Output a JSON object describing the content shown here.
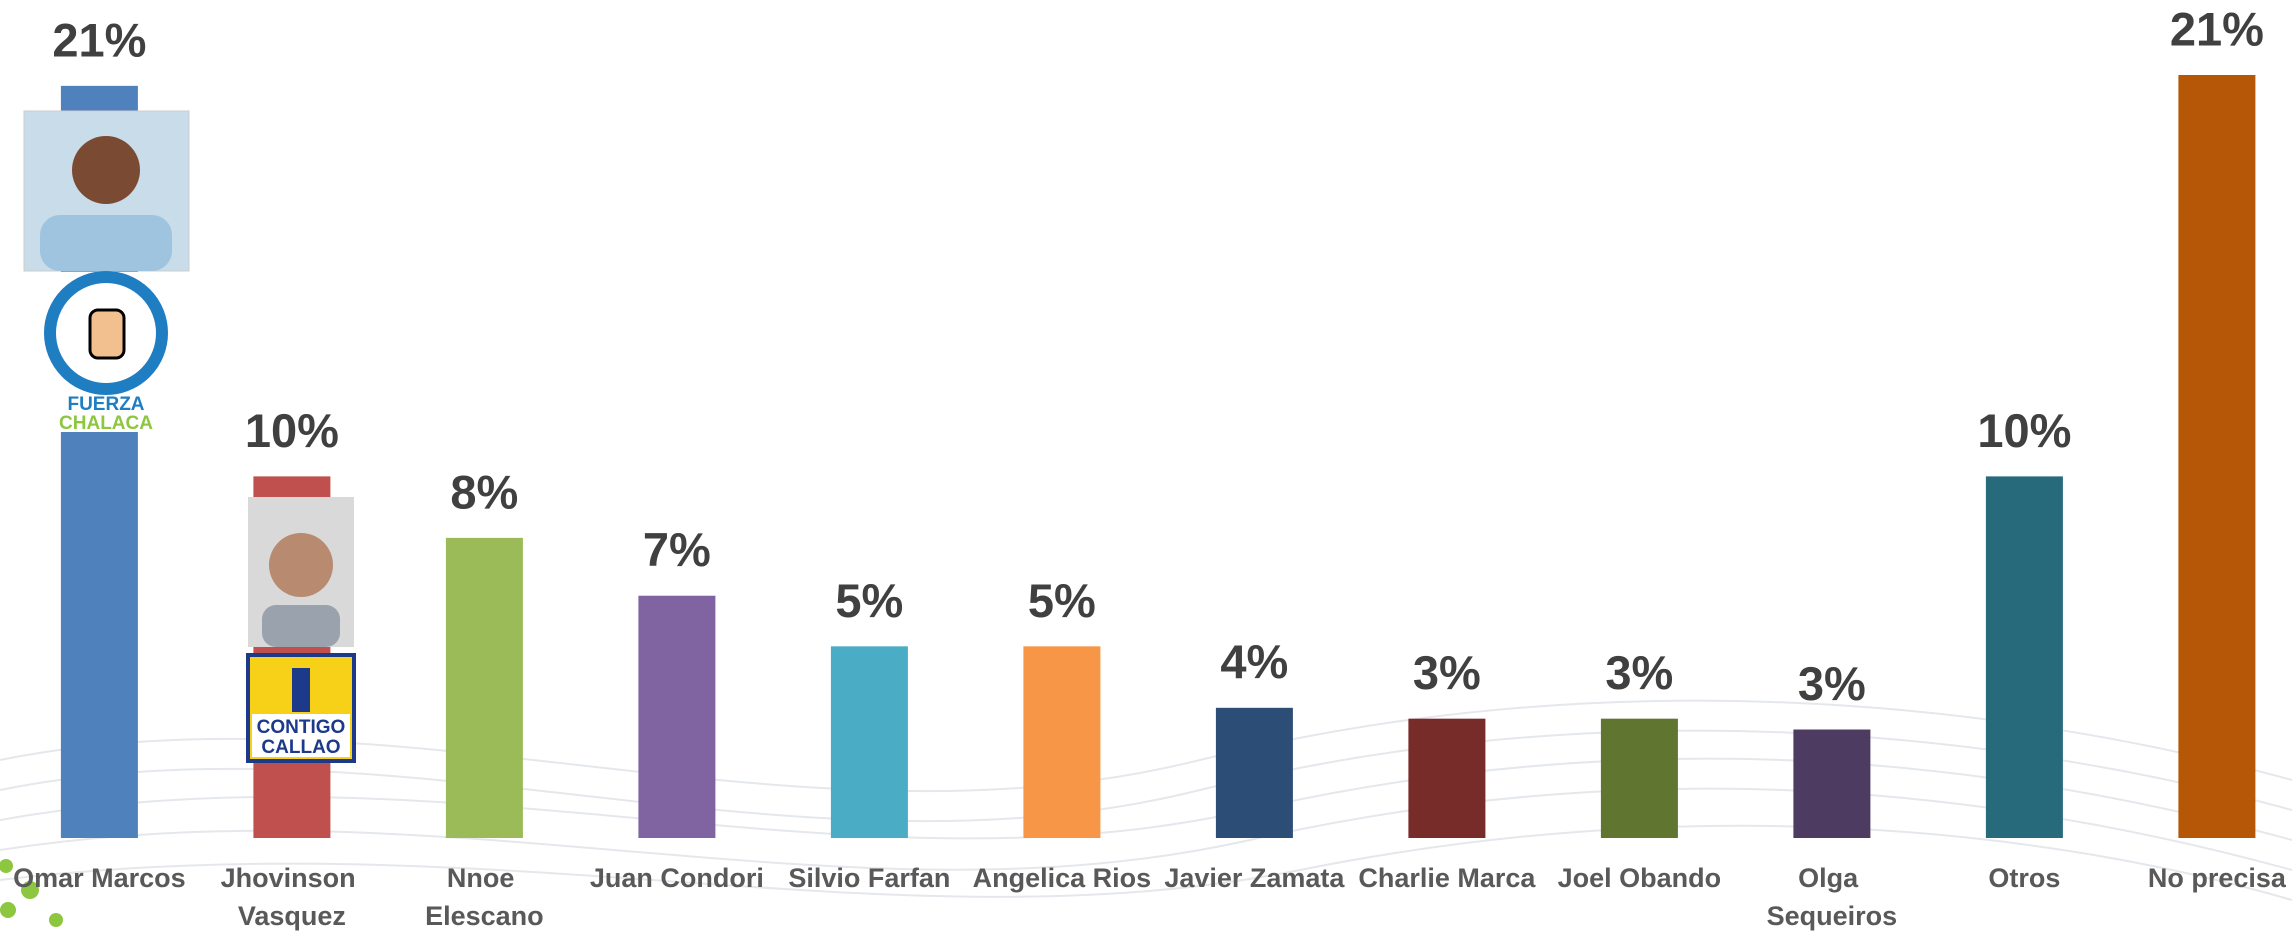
{
  "chart_data": {
    "type": "bar",
    "categories": [
      "Omar Marcos",
      "Jhovinson Vasquez",
      "Nnoe Elescano",
      "Juan Condori",
      "Silvio Farfan",
      "Angelica Rios",
      "Javier Zamata",
      "Charlie Marca",
      "Joel Obando",
      "Olga Sequeiros",
      "Otros",
      "No precisa"
    ],
    "values": [
      20.8,
      10,
      8.3,
      6.7,
      5.3,
      5.3,
      3.6,
      3.3,
      3.3,
      3,
      10,
      21.1
    ],
    "value_labels": [
      "21%",
      "10%",
      "8%",
      "7%",
      "5%",
      "5%",
      "4%",
      "3%",
      "3%",
      "3%",
      "10%",
      "21%"
    ],
    "colors": [
      "#4f81bd",
      "#c0504d",
      "#9bbb59",
      "#8064a2",
      "#4bacc6",
      "#f79646",
      "#2c4d75",
      "#772c2a",
      "#5f7530",
      "#4d3b62",
      "#276a7c",
      "#b65708"
    ],
    "logos": [
      [
        "FUERZA",
        "CHALACA"
      ],
      [
        "CONTIGO",
        "CALLAO"
      ]
    ]
  }
}
